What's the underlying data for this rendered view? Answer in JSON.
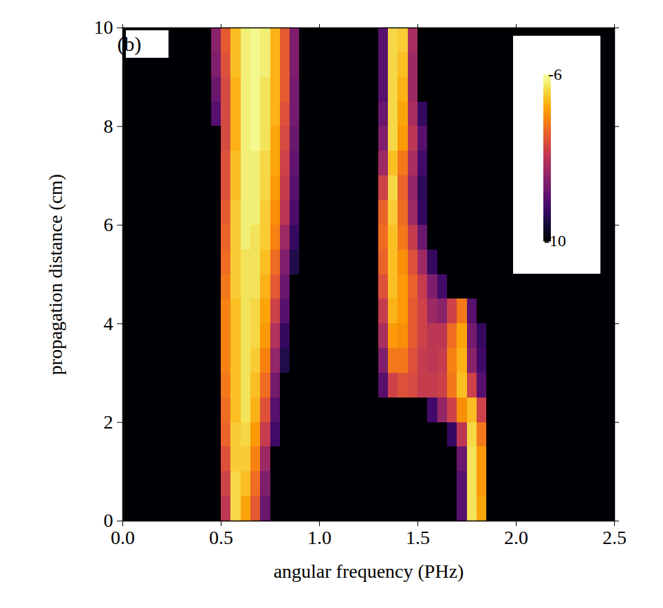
{
  "chart_data": {
    "type": "heatmap",
    "x_label": "angular frequency (PHz)",
    "y_label": "propagation distance (cm)",
    "annotations": [
      "(b)"
    ],
    "xlim": [
      0,
      2.5
    ],
    "ylim": [
      0,
      10
    ],
    "xticks": [
      {
        "value": 0,
        "label": "0.0"
      },
      0.5,
      {
        "value": 1,
        "label": "1.0"
      },
      1.5,
      {
        "value": 2,
        "label": "2.0"
      },
      2.5
    ],
    "yticks": [
      0,
      2,
      4,
      6,
      8,
      10
    ],
    "colorbar": {
      "range": [
        -10,
        -6
      ],
      "ticks": [
        -6,
        -10
      ]
    },
    "x": [
      0.025,
      0.075,
      0.125,
      0.175,
      0.225,
      0.275,
      0.325,
      0.375,
      0.425,
      0.475,
      0.525,
      0.575,
      0.625,
      0.675,
      0.725,
      0.775,
      0.825,
      0.875,
      0.925,
      0.975,
      1.025,
      1.075,
      1.125,
      1.175,
      1.225,
      1.275,
      1.325,
      1.375,
      1.425,
      1.475,
      1.525,
      1.575,
      1.625,
      1.675,
      1.725,
      1.775,
      1.825,
      1.875,
      1.925,
      1.975,
      2.025,
      2.075,
      2.125,
      2.175,
      2.225,
      2.275,
      2.325,
      2.375,
      2.425,
      2.475
    ],
    "y": [
      0.25,
      0.75,
      1.25,
      1.75,
      2.25,
      2.75,
      3.25,
      3.75,
      4.25,
      4.75,
      5.25,
      5.75,
      6.25,
      6.75,
      7.25,
      7.75,
      8.25,
      8.75,
      9.25,
      9.75
    ],
    "z": [
      [
        -10,
        -10,
        -10,
        -10,
        -10,
        -10,
        -10,
        -10,
        -10,
        -10,
        -8,
        -6.4,
        -6.8,
        -7.5,
        -8.8,
        -10,
        -10,
        -10,
        -10,
        -10,
        -10,
        -10,
        -10,
        -10,
        -10,
        -10,
        -10,
        -10,
        -10,
        -10,
        -10,
        -10,
        -10,
        -10,
        -9,
        -6.3,
        -6.8,
        -10,
        -10,
        -10,
        -10,
        -10,
        -10,
        -10,
        -10,
        -10,
        -10,
        -10,
        -10,
        -10
      ],
      [
        -10,
        -10,
        -10,
        -10,
        -10,
        -10,
        -10,
        -10,
        -10,
        -10,
        -7.8,
        -6.4,
        -6.6,
        -7.3,
        -8.6,
        -10,
        -10,
        -10,
        -10,
        -10,
        -10,
        -10,
        -10,
        -10,
        -10,
        -10,
        -10,
        -10,
        -10,
        -10,
        -10,
        -10,
        -10,
        -10,
        -9,
        -6.3,
        -6.9,
        -10,
        -10,
        -10,
        -10,
        -10,
        -10,
        -10,
        -10,
        -10,
        -10,
        -10,
        -10,
        -10
      ],
      [
        -10,
        -10,
        -10,
        -10,
        -10,
        -10,
        -10,
        -10,
        -10,
        -10,
        -7.6,
        -6.5,
        -6.5,
        -7.1,
        -8.3,
        -10,
        -10,
        -10,
        -10,
        -10,
        -10,
        -10,
        -10,
        -10,
        -10,
        -10,
        -10,
        -10,
        -10,
        -10,
        -10,
        -10,
        -10,
        -10,
        -8.8,
        -6.3,
        -6.9,
        -10,
        -10,
        -10,
        -10,
        -10,
        -10,
        -10,
        -10,
        -10,
        -10,
        -10,
        -10,
        -10
      ],
      [
        -10,
        -10,
        -10,
        -10,
        -10,
        -10,
        -10,
        -10,
        -10,
        -10,
        -7.4,
        -6.5,
        -6.4,
        -6.9,
        -7.9,
        -9.2,
        -10,
        -10,
        -10,
        -10,
        -10,
        -10,
        -10,
        -10,
        -10,
        -10,
        -10,
        -10,
        -10,
        -10,
        -10,
        -10,
        -10,
        -9.3,
        -8,
        -6.4,
        -7.2,
        -10,
        -10,
        -10,
        -10,
        -10,
        -10,
        -10,
        -10,
        -10,
        -10,
        -10,
        -10,
        -10
      ],
      [
        -10,
        -10,
        -10,
        -10,
        -10,
        -10,
        -10,
        -10,
        -10,
        -10,
        -7.3,
        -6.6,
        -6.3,
        -6.7,
        -7.6,
        -9,
        -10,
        -10,
        -10,
        -10,
        -10,
        -10,
        -10,
        -10,
        -10,
        -10,
        -10,
        -10,
        -10,
        -10,
        -10,
        -9.2,
        -8.4,
        -7.8,
        -7,
        -6.6,
        -7.8,
        -10,
        -10,
        -10,
        -10,
        -10,
        -10,
        -10,
        -10,
        -10,
        -10,
        -10,
        -10,
        -10
      ],
      [
        -10,
        -10,
        -10,
        -10,
        -10,
        -10,
        -10,
        -10,
        -10,
        -10,
        -7.2,
        -6.6,
        -6.3,
        -6.6,
        -7.3,
        -8.7,
        -10,
        -10,
        -10,
        -10,
        -10,
        -10,
        -10,
        -10,
        -10,
        -10,
        -9,
        -7.8,
        -7.6,
        -7.7,
        -7.9,
        -7.9,
        -7.8,
        -7.2,
        -6.6,
        -7.8,
        -9,
        -10,
        -10,
        -10,
        -10,
        -10,
        -10,
        -10,
        -10,
        -10,
        -10,
        -10,
        -10,
        -10
      ],
      [
        -10,
        -10,
        -10,
        -10,
        -10,
        -10,
        -10,
        -10,
        -10,
        -10,
        -7.1,
        -6.6,
        -6.3,
        -6.5,
        -7.1,
        -8.4,
        -9.5,
        -10,
        -10,
        -10,
        -10,
        -10,
        -10,
        -10,
        -10,
        -10,
        -8.6,
        -7.2,
        -7.2,
        -7.6,
        -7.9,
        -8,
        -7.9,
        -7.1,
        -6.7,
        -8.5,
        -9.2,
        -10,
        -10,
        -10,
        -10,
        -10,
        -10,
        -10,
        -10,
        -10,
        -10,
        -10,
        -10,
        -10
      ],
      [
        -10,
        -10,
        -10,
        -10,
        -10,
        -10,
        -10,
        -10,
        -10,
        -10,
        -7.1,
        -6.6,
        -6.3,
        -6.4,
        -6.9,
        -8.1,
        -9.3,
        -10,
        -10,
        -10,
        -10,
        -10,
        -10,
        -10,
        -10,
        -10,
        -8.2,
        -6.9,
        -7,
        -7.5,
        -7.8,
        -8,
        -8,
        -7.3,
        -6.8,
        -8.7,
        -9.3,
        -10,
        -10,
        -10,
        -10,
        -10,
        -10,
        -10,
        -10,
        -10,
        -10,
        -10,
        -10,
        -10
      ],
      [
        -10,
        -10,
        -10,
        -10,
        -10,
        -10,
        -10,
        -10,
        -10,
        -10,
        -7.1,
        -6.6,
        -6.3,
        -6.4,
        -6.8,
        -7.8,
        -9,
        -10,
        -10,
        -10,
        -10,
        -10,
        -10,
        -10,
        -10,
        -10,
        -7.9,
        -6.7,
        -6.9,
        -7.5,
        -7.8,
        -8.3,
        -8.5,
        -7.8,
        -7.2,
        -9,
        -10,
        -10,
        -10,
        -10,
        -10,
        -10,
        -10,
        -10,
        -10,
        -10,
        -10,
        -10,
        -10,
        -10
      ],
      [
        -10,
        -10,
        -10,
        -10,
        -10,
        -10,
        -10,
        -10,
        -10,
        -10,
        -7.2,
        -6.5,
        -6.3,
        -6.3,
        -6.7,
        -7.5,
        -8.8,
        -10,
        -10,
        -10,
        -10,
        -10,
        -10,
        -10,
        -10,
        -10,
        -7.6,
        -6.6,
        -6.9,
        -7.4,
        -7.9,
        -8.6,
        -9.2,
        -10,
        -10,
        -10,
        -10,
        -10,
        -10,
        -10,
        -10,
        -10,
        -10,
        -10,
        -10,
        -10,
        -10,
        -10,
        -10,
        -10
      ],
      [
        -10,
        -10,
        -10,
        -10,
        -10,
        -10,
        -10,
        -10,
        -10,
        -10,
        -7.3,
        -6.5,
        -6.3,
        -6.3,
        -6.6,
        -7.3,
        -8.6,
        -9.5,
        -10,
        -10,
        -10,
        -10,
        -10,
        -10,
        -10,
        -10,
        -7.4,
        -6.6,
        -7,
        -7.6,
        -8.3,
        -9.3,
        -10,
        -10,
        -10,
        -10,
        -10,
        -10,
        -10,
        -10,
        -10,
        -10,
        -10,
        -10,
        -10,
        -10,
        -10,
        -10,
        -10,
        -10
      ],
      [
        -10,
        -10,
        -10,
        -10,
        -10,
        -10,
        -10,
        -10,
        -10,
        -10,
        -7.4,
        -6.5,
        -6.2,
        -6.3,
        -6.5,
        -7.1,
        -8.3,
        -9.3,
        -10,
        -10,
        -10,
        -10,
        -10,
        -10,
        -10,
        -10,
        -7.3,
        -6.6,
        -7.2,
        -7.9,
        -8.8,
        -10,
        -10,
        -10,
        -10,
        -10,
        -10,
        -10,
        -10,
        -10,
        -10,
        -10,
        -10,
        -10,
        -10,
        -10,
        -10,
        -10,
        -10,
        -10
      ],
      [
        -10,
        -10,
        -10,
        -10,
        -10,
        -10,
        -10,
        -10,
        -10,
        -10,
        -7.5,
        -6.5,
        -6.2,
        -6.2,
        -6.5,
        -7,
        -8,
        -9.1,
        -10,
        -10,
        -10,
        -10,
        -10,
        -10,
        -10,
        -10,
        -7.4,
        -6.5,
        -7.3,
        -8.3,
        -9.3,
        -10,
        -10,
        -10,
        -10,
        -10,
        -10,
        -10,
        -10,
        -10,
        -10,
        -10,
        -10,
        -10,
        -10,
        -10,
        -10,
        -10,
        -10,
        -10
      ],
      [
        -10,
        -10,
        -10,
        -10,
        -10,
        -10,
        -10,
        -10,
        -10,
        -10,
        -7.6,
        -6.6,
        -6.2,
        -6.2,
        -6.4,
        -6.9,
        -7.9,
        -9,
        -10,
        -10,
        -10,
        -10,
        -10,
        -10,
        -10,
        -10,
        -7.8,
        -6.4,
        -7.4,
        -8.4,
        -9.4,
        -10,
        -10,
        -10,
        -10,
        -10,
        -10,
        -10,
        -10,
        -10,
        -10,
        -10,
        -10,
        -10,
        -10,
        -10,
        -10,
        -10,
        -10,
        -10
      ],
      [
        -10,
        -10,
        -10,
        -10,
        -10,
        -10,
        -10,
        -10,
        -10,
        -10,
        -7.6,
        -6.6,
        -6.2,
        -6.2,
        -6.4,
        -6.8,
        -7.8,
        -8.9,
        -10,
        -10,
        -10,
        -10,
        -10,
        -10,
        -10,
        -10,
        -8.3,
        -6.6,
        -7.2,
        -8.2,
        -9.2,
        -10,
        -10,
        -10,
        -10,
        -10,
        -10,
        -10,
        -10,
        -10,
        -10,
        -10,
        -10,
        -10,
        -10,
        -10,
        -10,
        -10,
        -10,
        -10
      ],
      [
        -10,
        -10,
        -10,
        -10,
        -10,
        -10,
        -10,
        -10,
        -10,
        -10,
        -7.7,
        -6.7,
        -6.2,
        -6.1,
        -6.3,
        -6.8,
        -7.7,
        -8.8,
        -10,
        -10,
        -10,
        -10,
        -10,
        -10,
        -10,
        -10,
        -8.6,
        -6.4,
        -6.9,
        -8,
        -9,
        -10,
        -10,
        -10,
        -10,
        -10,
        -10,
        -10,
        -10,
        -10,
        -10,
        -10,
        -10,
        -10,
        -10,
        -10,
        -10,
        -10,
        -10,
        -10
      ],
      [
        -10,
        -10,
        -10,
        -10,
        -10,
        -10,
        -10,
        -10,
        -10,
        -9,
        -7.7,
        -6.7,
        -6.2,
        -6.1,
        -6.3,
        -6.7,
        -7.6,
        -8.7,
        -10,
        -10,
        -10,
        -10,
        -10,
        -10,
        -10,
        -10,
        -8.8,
        -6.4,
        -6.8,
        -8.2,
        -9.3,
        -10,
        -10,
        -10,
        -10,
        -10,
        -10,
        -10,
        -10,
        -10,
        -10,
        -10,
        -10,
        -10,
        -10,
        -10,
        -10,
        -10,
        -10,
        -10
      ],
      [
        -10,
        -10,
        -10,
        -10,
        -10,
        -10,
        -10,
        -10,
        -10,
        -8.8,
        -7.7,
        -6.7,
        -6.2,
        -6.1,
        -6.3,
        -6.7,
        -7.5,
        -8.7,
        -10,
        -10,
        -10,
        -10,
        -10,
        -10,
        -10,
        -10,
        -9,
        -6.4,
        -6.7,
        -8.3,
        -10,
        -10,
        -10,
        -10,
        -10,
        -10,
        -10,
        -10,
        -10,
        -10,
        -10,
        -10,
        -10,
        -10,
        -10,
        -10,
        -10,
        -10,
        -10,
        -10
      ],
      [
        -10,
        -10,
        -10,
        -10,
        -10,
        -10,
        -10,
        -10,
        -10,
        -8.6,
        -7.6,
        -6.6,
        -6.2,
        -6.1,
        -6.2,
        -6.7,
        -7.5,
        -8.6,
        -10,
        -10,
        -10,
        -10,
        -10,
        -10,
        -10,
        -10,
        -9,
        -6.4,
        -6.6,
        -8.3,
        -10,
        -10,
        -10,
        -10,
        -10,
        -10,
        -10,
        -10,
        -10,
        -10,
        -10,
        -10,
        -10,
        -10,
        -10,
        -10,
        -10,
        -10,
        -10,
        -10
      ],
      [
        -10,
        -10,
        -10,
        -10,
        -10,
        -10,
        -10,
        -10,
        -10,
        -8.5,
        -7.5,
        -6.6,
        -6.2,
        -6.1,
        -6.2,
        -6.7,
        -7.5,
        -8.6,
        -10,
        -10,
        -10,
        -10,
        -10,
        -10,
        -10,
        -10,
        -9,
        -6.4,
        -6.5,
        -8.2,
        -10,
        -10,
        -10,
        -10,
        -10,
        -10,
        -10,
        -10,
        -10,
        -10,
        -10,
        -10,
        -10,
        -10,
        -10,
        -10,
        -10,
        -10,
        -10,
        -10
      ]
    ]
  }
}
